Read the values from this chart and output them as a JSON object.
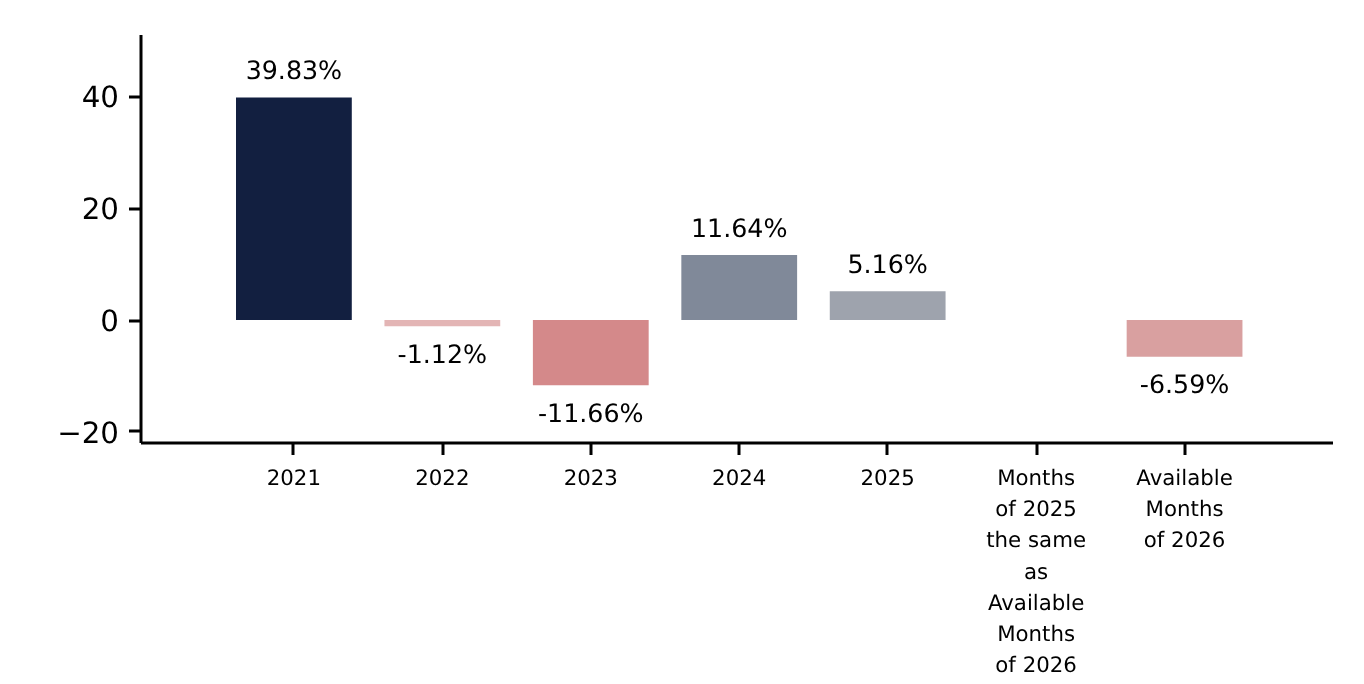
{
  "chart_data": {
    "type": "bar",
    "categories": [
      "2021",
      "2022",
      "2023",
      "2024",
      "2025",
      "Months of 2025 the same as Available Months of 2026",
      "Available Months of 2026"
    ],
    "values": [
      39.83,
      -1.12,
      -11.66,
      11.64,
      5.16,
      null,
      -6.59
    ],
    "value_labels": [
      "39.83%",
      "-1.12%",
      "-11.66%",
      "11.64%",
      "5.16%",
      null,
      "-6.59%"
    ],
    "colors": [
      "#121f40",
      "#e3b5b5",
      "#d4898a",
      "#808999",
      "#9ea3ad",
      null,
      "#d9a0a0"
    ],
    "ylim": [
      -22,
      51
    ],
    "yticks": [
      -20,
      0,
      20,
      40
    ],
    "grid": false
  }
}
